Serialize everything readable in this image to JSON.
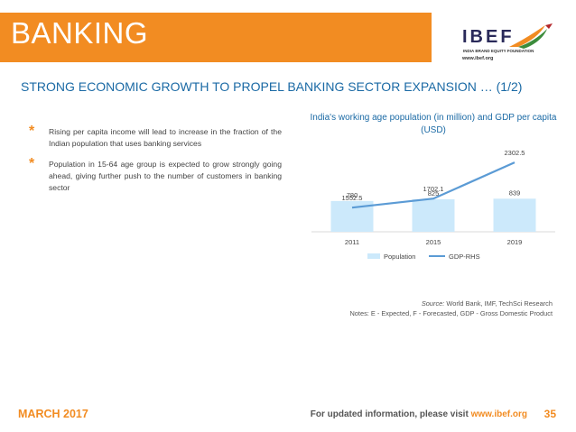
{
  "header": {
    "title": "BANKING"
  },
  "logo": {
    "name": "IBEF",
    "tagline": "INDIA BRAND EQUITY FOUNDATION",
    "url": "www.ibef.org"
  },
  "subtitle": "STRONG ECONOMIC GROWTH TO PROPEL BANKING SECTOR EXPANSION … (1/2)",
  "bullets": [
    "Rising per capita income will lead to increase in the fraction of the Indian population that uses banking services",
    "Population in 15-64 age group is expected to grow strongly going ahead, giving further push to the number of customers in banking sector"
  ],
  "chart_data": {
    "type": "bar",
    "title": "India's working age population (in million) and GDP per capita (USD)",
    "categories": [
      "2011",
      "2015",
      "2019"
    ],
    "series": [
      {
        "name": "Population",
        "type": "bar",
        "values": [
          780,
          825,
          839
        ],
        "color": "#cce9fb"
      },
      {
        "name": "GDP-RHS",
        "type": "line",
        "values": [
          1552.5,
          1702.1,
          2302.5
        ],
        "color": "#5b9bd5"
      }
    ],
    "legend": "bottom",
    "grid": false
  },
  "source": {
    "label": "Source:",
    "text": " World Bank, IMF, TechSci Research",
    "notes": "Notes: E - Expected, F - Forecasted, GDP - Gross Domestic Product"
  },
  "footer": {
    "date": "MARCH 2017",
    "info_prefix": "For updated information, please visit ",
    "info_url": "www.ibef.org",
    "page": "35"
  },
  "colors": {
    "accent": "#f28c22",
    "heading": "#1b6aa5"
  }
}
